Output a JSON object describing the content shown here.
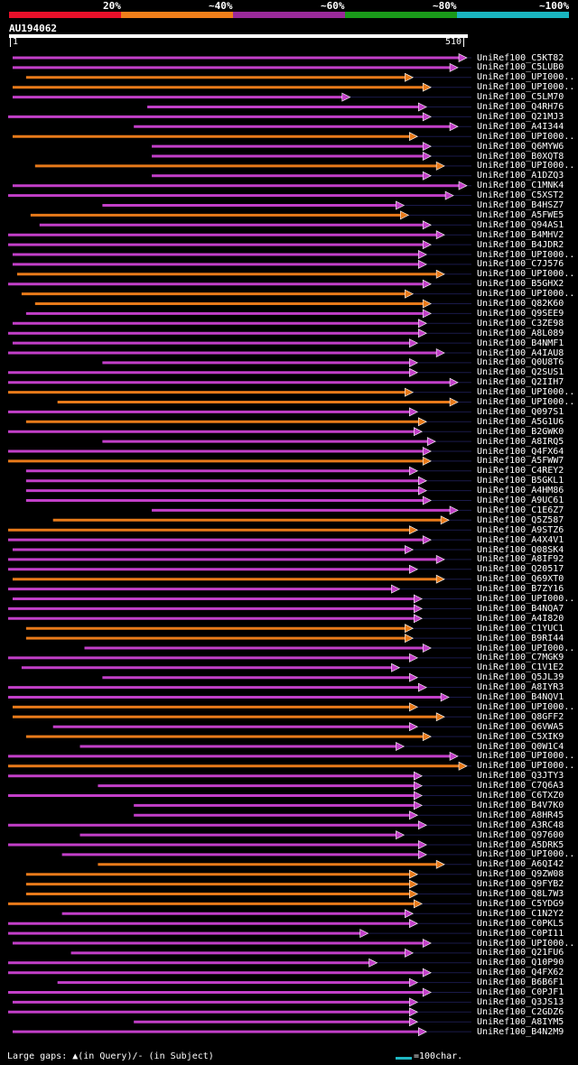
{
  "legend": {
    "labels": [
      "20%",
      "~40%",
      "~60%",
      "~80%",
      "~100%"
    ],
    "colors": [
      "#e8102a",
      "#f07f1a",
      "#9a2a9a",
      "#1a9a1a",
      "#1ab5c0"
    ]
  },
  "query": {
    "id": "AU194062",
    "start": "1",
    "end": "510"
  },
  "hit_colors": {
    "purple": "#c23fc8",
    "orange": "#e87a1a",
    "gap": "#1a1a4a",
    "triangle": "#f0e07a"
  },
  "hits": [
    {
      "name": "UniRef100_C5KT82",
      "color": "purple",
      "start": 5,
      "end": 510
    },
    {
      "name": "UniRef100_C5LUB0",
      "color": "purple",
      "start": 5,
      "end": 500
    },
    {
      "name": "UniRef100_UPI000..",
      "color": "orange",
      "start": 20,
      "end": 450
    },
    {
      "name": "UniRef100_UPI000..",
      "color": "orange",
      "start": 5,
      "end": 470
    },
    {
      "name": "UniRef100_C5LM70",
      "color": "purple",
      "start": 5,
      "end": 380
    },
    {
      "name": "UniRef100_Q4RH76",
      "color": "purple",
      "start": 155,
      "end": 465
    },
    {
      "name": "UniRef100_Q21MJ3",
      "color": "purple",
      "start": 0,
      "end": 470
    },
    {
      "name": "UniRef100_A4I344",
      "color": "purple",
      "start": 140,
      "end": 500
    },
    {
      "name": "UniRef100_UPI000..",
      "color": "orange",
      "start": 5,
      "end": 455
    },
    {
      "name": "UniRef100_Q6MYW6",
      "color": "purple",
      "start": 160,
      "end": 470
    },
    {
      "name": "UniRef100_B0XQT8",
      "color": "purple",
      "start": 160,
      "end": 470
    },
    {
      "name": "UniRef100_UPI000..",
      "color": "orange",
      "start": 30,
      "end": 485
    },
    {
      "name": "UniRef100_A1DZQ3",
      "color": "purple",
      "start": 160,
      "end": 470
    },
    {
      "name": "UniRef100_C1MNK4",
      "color": "purple",
      "start": 5,
      "end": 510
    },
    {
      "name": "UniRef100_C5XST2",
      "color": "purple",
      "start": 0,
      "end": 495
    },
    {
      "name": "UniRef100_B4HSZ7",
      "color": "purple",
      "start": 105,
      "end": 440
    },
    {
      "name": "UniRef100_A5FWE5",
      "color": "orange",
      "start": 25,
      "end": 445
    },
    {
      "name": "UniRef100_Q94AS1",
      "color": "purple",
      "start": 35,
      "end": 470
    },
    {
      "name": "UniRef100_B4MHV2",
      "color": "purple",
      "start": 0,
      "end": 485
    },
    {
      "name": "UniRef100_B4JDR2",
      "color": "purple",
      "start": 0,
      "end": 470
    },
    {
      "name": "UniRef100_UPI000..",
      "color": "purple",
      "start": 5,
      "end": 465
    },
    {
      "name": "UniRef100_C7J576",
      "color": "purple",
      "start": 5,
      "end": 465
    },
    {
      "name": "UniRef100_UPI000..",
      "color": "orange",
      "start": 10,
      "end": 485
    },
    {
      "name": "UniRef100_B5GHX2",
      "color": "purple",
      "start": 0,
      "end": 470
    },
    {
      "name": "UniRef100_UPI000..",
      "color": "orange",
      "start": 15,
      "end": 450
    },
    {
      "name": "UniRef100_Q82K60",
      "color": "orange",
      "start": 30,
      "end": 470
    },
    {
      "name": "UniRef100_Q9SEE9",
      "color": "purple",
      "start": 20,
      "end": 470
    },
    {
      "name": "UniRef100_C3ZE98",
      "color": "purple",
      "start": 5,
      "end": 465
    },
    {
      "name": "UniRef100_A8L089",
      "color": "purple",
      "start": 0,
      "end": 465
    },
    {
      "name": "UniRef100_B4NMF1",
      "color": "purple",
      "start": 5,
      "end": 455
    },
    {
      "name": "UniRef100_A4IAU8",
      "color": "purple",
      "start": 0,
      "end": 485
    },
    {
      "name": "UniRef100_Q0U8T6",
      "color": "purple",
      "start": 105,
      "end": 455
    },
    {
      "name": "UniRef100_Q2SUS1",
      "color": "purple",
      "start": 0,
      "end": 455
    },
    {
      "name": "UniRef100_Q2IIH7",
      "color": "purple",
      "start": 0,
      "end": 500
    },
    {
      "name": "UniRef100_UPI000..",
      "color": "orange",
      "start": 0,
      "end": 450
    },
    {
      "name": "UniRef100_UPI000..",
      "color": "orange",
      "start": 55,
      "end": 500
    },
    {
      "name": "UniRef100_Q097S1",
      "color": "purple",
      "start": 0,
      "end": 455
    },
    {
      "name": "UniRef100_A5G1U6",
      "color": "orange",
      "start": 20,
      "end": 465
    },
    {
      "name": "UniRef100_B2GWK0",
      "color": "purple",
      "start": 0,
      "end": 460
    },
    {
      "name": "UniRef100_A8IRQ5",
      "color": "purple",
      "start": 105,
      "end": 475
    },
    {
      "name": "UniRef100_Q4FX64",
      "color": "purple",
      "start": 0,
      "end": 470
    },
    {
      "name": "UniRef100_A5FWW7",
      "color": "orange",
      "start": 0,
      "end": 470
    },
    {
      "name": "UniRef100_C4REY2",
      "color": "purple",
      "start": 20,
      "end": 455
    },
    {
      "name": "UniRef100_B5GKL1",
      "color": "purple",
      "start": 20,
      "end": 465
    },
    {
      "name": "UniRef100_A4HM86",
      "color": "purple",
      "start": 20,
      "end": 465
    },
    {
      "name": "UniRef100_A9UC61",
      "color": "purple",
      "start": 20,
      "end": 470
    },
    {
      "name": "UniRef100_C1E6Z7",
      "color": "purple",
      "start": 160,
      "end": 500
    },
    {
      "name": "UniRef100_Q5Z587",
      "color": "orange",
      "start": 50,
      "end": 490
    },
    {
      "name": "UniRef100_A9STZ6",
      "color": "orange",
      "start": 0,
      "end": 455
    },
    {
      "name": "UniRef100_A4X4V1",
      "color": "purple",
      "start": 0,
      "end": 470
    },
    {
      "name": "UniRef100_Q08SK4",
      "color": "purple",
      "start": 5,
      "end": 450
    },
    {
      "name": "UniRef100_A8IF92",
      "color": "purple",
      "start": 0,
      "end": 485
    },
    {
      "name": "UniRef100_Q20517",
      "color": "purple",
      "start": 0,
      "end": 455
    },
    {
      "name": "UniRef100_Q69XT0",
      "color": "orange",
      "start": 5,
      "end": 485
    },
    {
      "name": "UniRef100_B7ZY16",
      "color": "purple",
      "start": 0,
      "end": 435
    },
    {
      "name": "UniRef100_UPI000..",
      "color": "purple",
      "start": 5,
      "end": 460
    },
    {
      "name": "UniRef100_B4NQA7",
      "color": "purple",
      "start": 0,
      "end": 460
    },
    {
      "name": "UniRef100_A4I820",
      "color": "purple",
      "start": 0,
      "end": 460
    },
    {
      "name": "UniRef100_C1YUC1",
      "color": "orange",
      "start": 20,
      "end": 450
    },
    {
      "name": "UniRef100_B9RI44",
      "color": "orange",
      "start": 20,
      "end": 450
    },
    {
      "name": "UniRef100_UPI000..",
      "color": "purple",
      "start": 85,
      "end": 470
    },
    {
      "name": "UniRef100_C7MGK9",
      "color": "purple",
      "start": 0,
      "end": 455
    },
    {
      "name": "UniRef100_C1V1E2",
      "color": "purple",
      "start": 15,
      "end": 435
    },
    {
      "name": "UniRef100_Q5JL39",
      "color": "purple",
      "start": 105,
      "end": 455
    },
    {
      "name": "UniRef100_A8IYR3",
      "color": "purple",
      "start": 0,
      "end": 465
    },
    {
      "name": "UniRef100_B4NQV1",
      "color": "purple",
      "start": 0,
      "end": 490
    },
    {
      "name": "UniRef100_UPI000..",
      "color": "orange",
      "start": 5,
      "end": 455
    },
    {
      "name": "UniRef100_Q8GFF2",
      "color": "orange",
      "start": 5,
      "end": 485
    },
    {
      "name": "UniRef100_Q6VWA5",
      "color": "purple",
      "start": 50,
      "end": 455
    },
    {
      "name": "UniRef100_C5XIK9",
      "color": "orange",
      "start": 20,
      "end": 470
    },
    {
      "name": "UniRef100_Q0W1C4",
      "color": "purple",
      "start": 80,
      "end": 440
    },
    {
      "name": "UniRef100_UPI000..",
      "color": "purple",
      "start": 0,
      "end": 500
    },
    {
      "name": "UniRef100_UPI000..",
      "color": "orange",
      "start": 0,
      "end": 510
    },
    {
      "name": "UniRef100_Q3JTY3",
      "color": "purple",
      "start": 0,
      "end": 460
    },
    {
      "name": "UniRef100_C7Q6A3",
      "color": "purple",
      "start": 100,
      "end": 460
    },
    {
      "name": "UniRef100_C6TXZ0",
      "color": "purple",
      "start": 0,
      "end": 460
    },
    {
      "name": "UniRef100_B4V7K0",
      "color": "purple",
      "start": 140,
      "end": 460
    },
    {
      "name": "UniRef100_A8HR45",
      "color": "purple",
      "start": 140,
      "end": 455
    },
    {
      "name": "UniRef100_A3RC48",
      "color": "purple",
      "start": 0,
      "end": 465
    },
    {
      "name": "UniRef100_Q97600",
      "color": "purple",
      "start": 80,
      "end": 440
    },
    {
      "name": "UniRef100_A5DRK5",
      "color": "purple",
      "start": 0,
      "end": 465
    },
    {
      "name": "UniRef100_UPI000..",
      "color": "purple",
      "start": 60,
      "end": 465
    },
    {
      "name": "UniRef100_A6QI42",
      "color": "orange",
      "start": 100,
      "end": 485
    },
    {
      "name": "UniRef100_Q9ZW08",
      "color": "orange",
      "start": 20,
      "end": 455
    },
    {
      "name": "UniRef100_Q9FYB2",
      "color": "orange",
      "start": 20,
      "end": 455
    },
    {
      "name": "UniRef100_Q8L7W3",
      "color": "orange",
      "start": 20,
      "end": 455
    },
    {
      "name": "UniRef100_C5YDG9",
      "color": "orange",
      "start": 0,
      "end": 460
    },
    {
      "name": "UniRef100_C1N2Y2",
      "color": "purple",
      "start": 60,
      "end": 450
    },
    {
      "name": "UniRef100_C0PKL5",
      "color": "purple",
      "start": 0,
      "end": 455
    },
    {
      "name": "UniRef100_C0PI11",
      "color": "purple",
      "start": 0,
      "end": 400
    },
    {
      "name": "UniRef100_UPI000..",
      "color": "purple",
      "start": 5,
      "end": 470
    },
    {
      "name": "UniRef100_Q21FU6",
      "color": "purple",
      "start": 70,
      "end": 450
    },
    {
      "name": "UniRef100_Q10P90",
      "color": "purple",
      "start": 0,
      "end": 410
    },
    {
      "name": "UniRef100_Q4FX62",
      "color": "purple",
      "start": 0,
      "end": 470
    },
    {
      "name": "UniRef100_B6B6F1",
      "color": "purple",
      "start": 55,
      "end": 455
    },
    {
      "name": "UniRef100_C0PJF1",
      "color": "purple",
      "start": 0,
      "end": 470
    },
    {
      "name": "UniRef100_Q3JS13",
      "color": "purple",
      "start": 5,
      "end": 455
    },
    {
      "name": "UniRef100_C2GDZ6",
      "color": "purple",
      "start": 0,
      "end": 455
    },
    {
      "name": "UniRef100_A8IYM5",
      "color": "purple",
      "start": 140,
      "end": 455
    },
    {
      "name": "UniRef100_B4N2M9",
      "color": "purple",
      "start": 5,
      "end": 465
    }
  ],
  "footer": {
    "gap_note": "Large gaps: ▲(in Query)/- (in Subject)",
    "scale_note": "=100char."
  }
}
